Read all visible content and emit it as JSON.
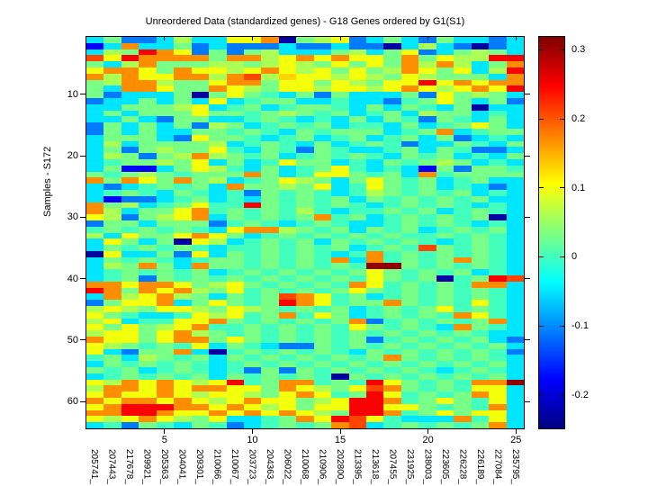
{
  "chart_data": {
    "type": "heatmap",
    "title": "Unreordered Data (standardized genes) - G18 Genes ordered by G1(S1)",
    "ylabel": "Samples - S172",
    "rows": 64,
    "cols": 25,
    "y_tick_labels": [
      "10",
      "20",
      "30",
      "40",
      "50",
      "60"
    ],
    "y_tick_values": [
      10,
      20,
      30,
      40,
      50,
      60
    ],
    "x_tick_labels": [
      "5",
      "10",
      "15",
      "20",
      "25"
    ],
    "x_tick_values": [
      5,
      10,
      15,
      20,
      25
    ],
    "x_category_labels": [
      "205741_",
      "207443_",
      "217678_",
      "209921_",
      "205363_",
      "204041_",
      "209301_",
      "210066_",
      "210067_",
      "203723_",
      "204363_",
      "206022_",
      "210068_",
      "210906_",
      "202800_",
      "213395_",
      "213618_",
      "207455_",
      "231925_",
      "238003_",
      "223605_",
      "226228_",
      "226189_",
      "227084_",
      "235795_"
    ],
    "colormap": "jet",
    "clim": [
      -0.25,
      0.32
    ],
    "colorbar": {
      "tick_labels": [
        "0.3",
        "0.2",
        "0.1",
        "0",
        "-0.1",
        "-0.2"
      ],
      "tick_values": [
        0.3,
        0.2,
        0.1,
        0,
        -0.1,
        -0.2
      ],
      "gradient_stops": [
        {
          "u": 0.0,
          "color": "#000080"
        },
        {
          "u": 0.125,
          "color": "#0000FF"
        },
        {
          "u": 0.375,
          "color": "#00FFFF"
        },
        {
          "u": 0.625,
          "color": "#FFFF00"
        },
        {
          "u": 0.875,
          "color": "#FF0000"
        },
        {
          "u": 1.0,
          "color": "#800000"
        }
      ]
    },
    "palette": {
      "N": {
        "value": -0.23,
        "color": "#0000A3"
      },
      "n": {
        "value": -0.18,
        "color": "#0000FE"
      },
      "b": {
        "value": -0.11,
        "color": "#007BFF"
      },
      "c": {
        "value": -0.05,
        "color": "#00E6FF"
      },
      "t": {
        "value": 0.0,
        "color": "#42FFBD"
      },
      "g": {
        "value": 0.03,
        "color": "#77FF88"
      },
      "l": {
        "value": 0.06,
        "color": "#ACFF53"
      },
      "y": {
        "value": 0.1,
        "color": "#F4FF0B"
      },
      "Y": {
        "value": 0.13,
        "color": "#FFD400"
      },
      "o": {
        "value": 0.17,
        "color": "#FF8D00"
      },
      "r": {
        "value": 0.21,
        "color": "#FF4500"
      },
      "R": {
        "value": 0.25,
        "color": "#FC0000"
      },
      "D": {
        "value": 0.31,
        "color": "#920000"
      }
    },
    "matrix_codes": [
      "cgbbclccyyoNglybcgcbgccbc",
      "ncoccgbcbbbcbbcbbNclcbNbc",
      "clgRoybgbglcccglcgybcglgc",
      "ryRoooogoolyoyoyygogyllRR",
      "gclogggllglylgygygololcgo",
      "yooygoyylyoylygygloygyclR",
      "oloyyoolorlYyylylgylgggco",
      "gloolggyoogyygylgyyRyoyoo",
      "gcooyggoylgyylyylyoylyoyR",
      "gbcccgNgygtcgbgcccgbyglgc",
      "bccgcgcyctggcctccbtgygcgb",
      "ccggglyctgctggtcgcgtcgNcc",
      "cgcgggyggtglgtgctgclggctc",
      "ccgcbggcctgtctcgcgtbgtcgc",
      "bgcgcgblgctgtgcttcgctgygc",
      "bgcgccggtgtcgtgggctgoctgg",
      "cgggcbyggtctgctgctgcgbctc",
      "clcgggglctgtcgctgtbccgtcg",
      "cgbglggytcgtbgtcctgcgtbbc",
      "clgbglolgtgctgtgtcgtgctcg",
      "ctgglgycgctyggctcgtglgctc",
      "cgnncgyltcgctgytctcngbggt",
      "gtglgtgggogctyygtgcotgggg",
      "ogoygoglctgylgcgygtgctgcc",
      "cbctgtgcogglgyctygtgctcbc",
      "ctgtcgtctbgtgtctlgtgtgctc",
      "cnbbctgctcgtgtgcgtgtgtgcc",
      "oglctgyttRgtgtgtctgtgtctc",
      "olcggyotgtgtltcttgtgctgtc",
      "ylbglyocgtgtgotgctgtgtgNc",
      "bggcgggbtgtctgtcctgtgtctc",
      "tgtgtgtcyoolgtgcgtgctgtgc",
      "lcyggyoygctgtgtgtgttgtgtc",
      "cygcgNylctgtgcgtgtgtctgtc",
      "cgtgtgtcttgtgtgctgtrgtgtc",
      "Nyccgbycgtgtgtctotgtgtgtc",
      "cgtgtctggtgtgtocotgtgogtc",
      "clgogcoggtgtgtgtDDgtgtgtc",
      "ctgtgtgctgtgtgtgygtgtgctc",
      "ctgbgtgtgtgtgtgtygtgNtgRr",
      "ooyooyglygtgtgtoytgtgtooc",
      "Rogoyolgytgtgtgygtgtgtgtc",
      "colyolgcgtgroytgctgtgtgtc",
      "bgyyocgygtgRoytggogtgtytc",
      "lylgyylgylgtgtgctgtgytgtc",
      "ygtcctylytgotygctgtgtoytc",
      "lycttyyogtgtgtgobtgtgtgoc",
      "ygyglyottgtgtgtygtgtcogtc",
      "lyygyolgtgtgtgtgtgtgtgtcc",
      "oyygyoogygtgtgtgbtgtgtgcb",
      "ylgtgtycgtcbbgtgtgtgtgtgc",
      "ycbggocNtgtgtgtcgtgtgtgtb",
      "tgclgtgcgtgtgtgtgogtgtgtc",
      "cgtgtgtctgtgtgtgtgtgtgtgc",
      "gtgctgtctbgbgtgtgtgtctgtc",
      "ctgtgtgcgtgtgtNgtgtgtgtgc",
      "yloyoylyRtgootgtRygtgtooD",
      "looyoyooyygoylgyrogtgtyyc",
      "yoyyoylyylgyoytgRytgtgoyc",
      "oyooyoylyoyyglyRRotgygtyc",
      "yoRRRooyoylygyyRRyygtgtoc",
      "ooRRoyyoyoyoylgRRotgygyyc",
      "ylyoylgycctgoyRrytcccotyc",
      "ctbgtcgtbctgtgorctgtgtgoc"
    ]
  }
}
